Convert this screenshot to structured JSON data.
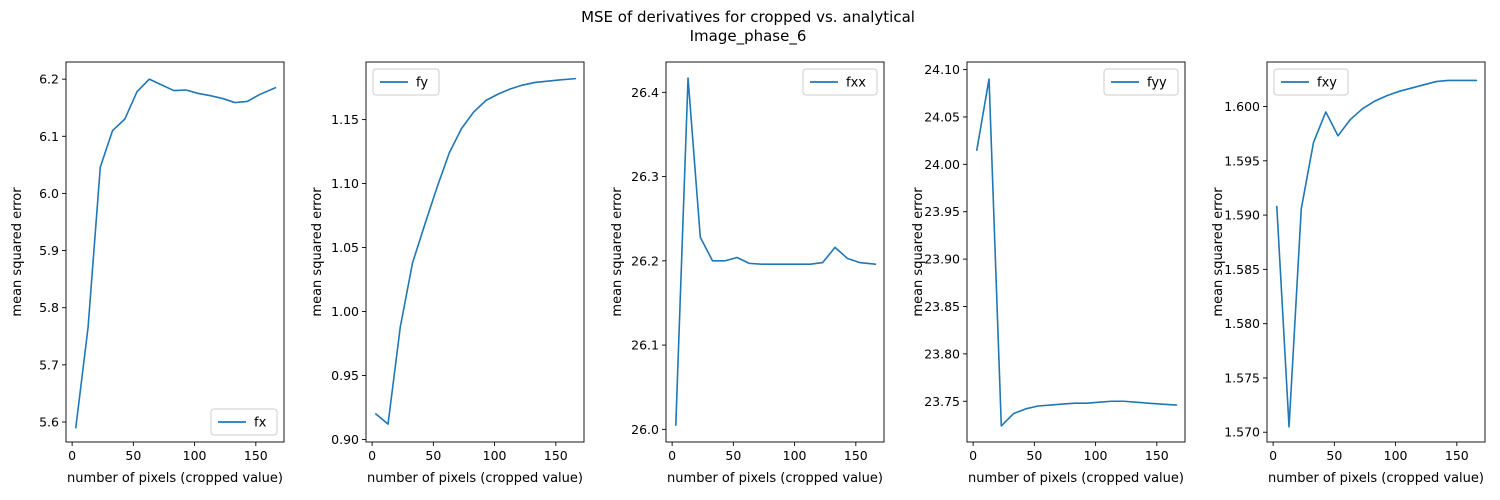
{
  "figure": {
    "title_line1": "MSE of derivatives for cropped vs. analytical",
    "title_line2": "Image_phase_6",
    "line_color": "#1f77b4"
  },
  "chart_data": [
    {
      "type": "line",
      "xlabel": "number of pixels (cropped value)",
      "ylabel": "mean squared error",
      "legend_placement": "lower-right",
      "xlim": [
        -5,
        173
      ],
      "ylim": [
        5.565,
        6.23
      ],
      "xticks": [
        0,
        50,
        100,
        150
      ],
      "yticks": [
        5.6,
        5.7,
        5.8,
        5.9,
        6.0,
        6.1,
        6.2
      ],
      "ytick_labels": [
        "5.6",
        "5.7",
        "5.8",
        "5.9",
        "6.0",
        "6.1",
        "6.2"
      ],
      "series": [
        {
          "name": "fx",
          "x": [
            3,
            13,
            23,
            33,
            43,
            53,
            63,
            73,
            83,
            93,
            103,
            113,
            123,
            133,
            143,
            153,
            166
          ],
          "y": [
            5.59,
            5.765,
            6.046,
            6.11,
            6.13,
            6.178,
            6.2,
            6.19,
            6.18,
            6.181,
            6.175,
            6.171,
            6.166,
            6.159,
            6.161,
            6.173,
            6.185
          ]
        }
      ]
    },
    {
      "type": "line",
      "xlabel": "number of pixels (cropped value)",
      "ylabel": "mean squared error",
      "legend_placement": "upper-left",
      "xlim": [
        -5,
        173
      ],
      "ylim": [
        0.898,
        1.195
      ],
      "xticks": [
        0,
        50,
        100,
        150
      ],
      "yticks": [
        0.9,
        0.95,
        1.0,
        1.05,
        1.1,
        1.15
      ],
      "ytick_labels": [
        "0.90",
        "0.95",
        "1.00",
        "1.05",
        "1.10",
        "1.15"
      ],
      "series": [
        {
          "name": "fy",
          "x": [
            3,
            13,
            23,
            33,
            43,
            53,
            63,
            73,
            83,
            93,
            103,
            113,
            123,
            133,
            143,
            153,
            166
          ],
          "y": [
            0.92,
            0.912,
            0.988,
            1.038,
            1.068,
            1.097,
            1.124,
            1.143,
            1.156,
            1.165,
            1.17,
            1.174,
            1.177,
            1.179,
            1.18,
            1.181,
            1.182
          ]
        }
      ]
    },
    {
      "type": "line",
      "xlabel": "number of pixels (cropped value)",
      "ylabel": "mean squared error",
      "legend_placement": "upper-right",
      "xlim": [
        -5,
        173
      ],
      "ylim": [
        25.985,
        26.436
      ],
      "xticks": [
        0,
        50,
        100,
        150
      ],
      "yticks": [
        26.0,
        26.1,
        26.2,
        26.3,
        26.4
      ],
      "ytick_labels": [
        "26.0",
        "26.1",
        "26.2",
        "26.3",
        "26.4"
      ],
      "series": [
        {
          "name": "fxx",
          "x": [
            3,
            13,
            23,
            33,
            43,
            53,
            63,
            73,
            83,
            93,
            103,
            113,
            123,
            133,
            143,
            153,
            166
          ],
          "y": [
            26.005,
            26.417,
            26.228,
            26.2,
            26.2,
            26.204,
            26.197,
            26.196,
            26.196,
            26.196,
            26.196,
            26.196,
            26.198,
            26.216,
            26.203,
            26.198,
            26.196
          ]
        }
      ]
    },
    {
      "type": "line",
      "xlabel": "number of pixels (cropped value)",
      "ylabel": "mean squared error",
      "legend_placement": "upper-right",
      "xlim": [
        -5,
        173
      ],
      "ylim": [
        23.707,
        24.108
      ],
      "xticks": [
        0,
        50,
        100,
        150
      ],
      "yticks": [
        23.75,
        23.8,
        23.85,
        23.9,
        23.95,
        24.0,
        24.05,
        24.1
      ],
      "ytick_labels": [
        "23.75",
        "23.80",
        "23.85",
        "23.90",
        "23.95",
        "24.00",
        "24.05",
        "24.10"
      ],
      "series": [
        {
          "name": "fyy",
          "x": [
            3,
            13,
            23,
            33,
            43,
            53,
            63,
            73,
            83,
            93,
            103,
            113,
            123,
            133,
            143,
            153,
            166
          ],
          "y": [
            24.015,
            24.09,
            23.724,
            23.737,
            23.742,
            23.745,
            23.746,
            23.747,
            23.748,
            23.748,
            23.749,
            23.75,
            23.75,
            23.749,
            23.748,
            23.747,
            23.746
          ]
        }
      ]
    },
    {
      "type": "line",
      "xlabel": "number of pixels (cropped value)",
      "ylabel": "mean squared error",
      "legend_placement": "upper-left",
      "xlim": [
        -5,
        173
      ],
      "ylim": [
        1.5691,
        1.6041
      ],
      "xticks": [
        0,
        50,
        100,
        150
      ],
      "yticks": [
        1.57,
        1.575,
        1.58,
        1.585,
        1.59,
        1.595,
        1.6
      ],
      "ytick_labels": [
        "1.570",
        "1.575",
        "1.580",
        "1.585",
        "1.590",
        "1.595",
        "1.600"
      ],
      "series": [
        {
          "name": "fxy",
          "x": [
            3,
            13,
            23,
            33,
            43,
            53,
            63,
            73,
            83,
            93,
            103,
            113,
            123,
            133,
            143,
            153,
            166
          ],
          "y": [
            1.5908,
            1.5705,
            1.5906,
            1.5967,
            1.5995,
            1.5973,
            1.5988,
            1.5998,
            1.6005,
            1.601,
            1.6014,
            1.6017,
            1.602,
            1.6023,
            1.6024,
            1.6024,
            1.6024
          ]
        }
      ]
    }
  ]
}
